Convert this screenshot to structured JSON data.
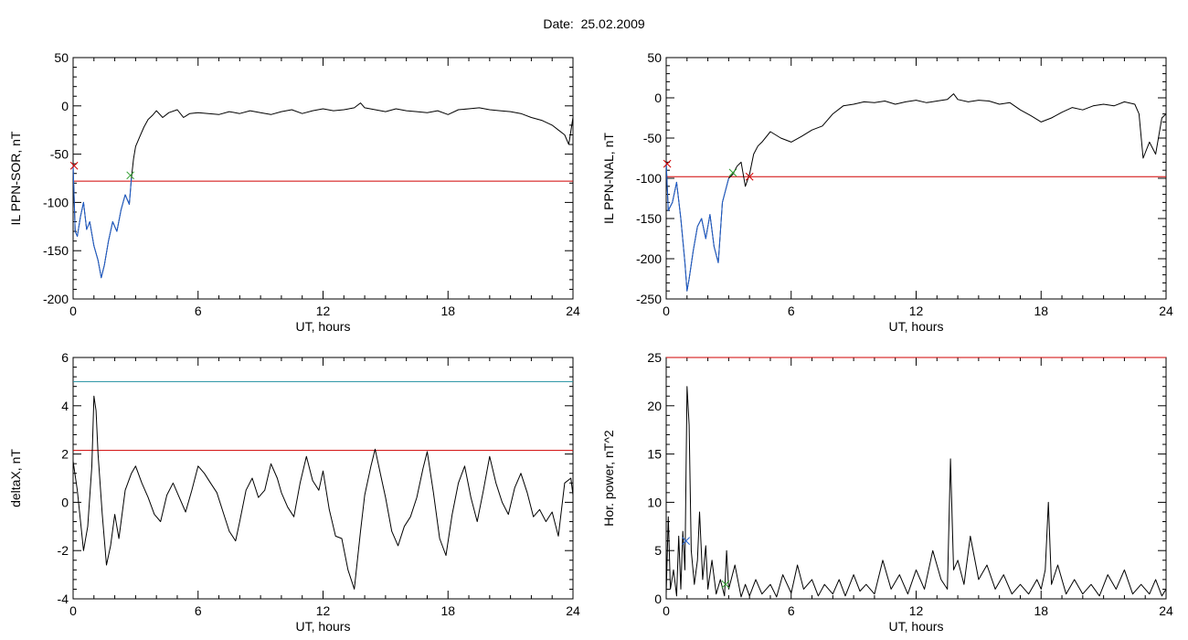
{
  "title": "Date:  25.02.2009",
  "chart_data": [
    {
      "type": "line",
      "title": "",
      "xlabel": "UT, hours",
      "ylabel": "IL PPN-SOR, nT",
      "xlim": [
        0,
        24
      ],
      "ylim": [
        -200,
        50
      ],
      "xticks": [
        0,
        6,
        12,
        18,
        24
      ],
      "yticks": [
        -200,
        -150,
        -100,
        -50,
        0,
        50
      ],
      "threshold": {
        "y": -78,
        "color": "#d00000"
      },
      "series": [
        {
          "color": "#000000",
          "x": [
            0,
            0.1,
            0.2,
            0.35,
            0.5,
            0.65,
            0.8,
            1.0,
            1.2,
            1.35,
            1.5,
            1.7,
            1.9,
            2.1,
            2.3,
            2.5,
            2.7,
            2.8,
            2.9,
            3.0,
            3.2,
            3.4,
            3.6,
            3.8,
            4.0,
            4.3,
            4.6,
            5.0,
            5.3,
            5.6,
            6.0,
            6.5,
            7.0,
            7.5,
            8.0,
            8.5,
            9.0,
            9.5,
            10.0,
            10.5,
            11.0,
            11.5,
            12.0,
            12.5,
            13.0,
            13.5,
            13.8,
            14.0,
            14.5,
            15.0,
            15.5,
            16.0,
            16.5,
            17.0,
            17.5,
            18.0,
            18.5,
            19.0,
            19.5,
            20.0,
            20.5,
            21.0,
            21.5,
            22.0,
            22.5,
            23.0,
            23.3,
            23.6,
            23.8,
            24.0
          ],
          "y": [
            -62,
            -130,
            -135,
            -115,
            -100,
            -128,
            -120,
            -145,
            -160,
            -178,
            -165,
            -140,
            -120,
            -130,
            -108,
            -92,
            -102,
            -75,
            -55,
            -42,
            -32,
            -22,
            -14,
            -10,
            -5,
            -12,
            -7,
            -4,
            -12,
            -8,
            -7,
            -8,
            -9,
            -6,
            -8,
            -5,
            -7,
            -9,
            -6,
            -4,
            -8,
            -5,
            -3,
            -5,
            -4,
            -2,
            3,
            -2,
            -4,
            -6,
            -3,
            -5,
            -6,
            -7,
            -5,
            -9,
            -4,
            -3,
            -2,
            -4,
            -5,
            -6,
            -8,
            -12,
            -15,
            -20,
            -25,
            -30,
            -40,
            -12
          ]
        },
        {
          "color": "#1f5fd0",
          "x": [
            0,
            0.1,
            0.2,
            0.35,
            0.5,
            0.65,
            0.8,
            1.0,
            1.2,
            1.35,
            1.5,
            1.7,
            1.9,
            2.1,
            2.3,
            2.5,
            2.7,
            2.8
          ],
          "y": [
            -62,
            -130,
            -135,
            -115,
            -100,
            -128,
            -120,
            -145,
            -160,
            -178,
            -165,
            -140,
            -120,
            -130,
            -108,
            -92,
            -102,
            -75
          ]
        }
      ],
      "markers": [
        {
          "x": 0.05,
          "y": -62,
          "color": "#d00000"
        },
        {
          "x": 2.75,
          "y": -72,
          "color": "#2e9e2e"
        }
      ]
    },
    {
      "type": "line",
      "title": "",
      "xlabel": "UT, hours",
      "ylabel": "IL PPN-NAL, nT",
      "xlim": [
        0,
        24
      ],
      "ylim": [
        -250,
        50
      ],
      "xticks": [
        0,
        6,
        12,
        18,
        24
      ],
      "yticks": [
        -250,
        -200,
        -150,
        -100,
        -50,
        0,
        50
      ],
      "threshold": {
        "y": -98,
        "color": "#d00000"
      },
      "series": [
        {
          "color": "#000000",
          "x": [
            0,
            0.1,
            0.3,
            0.5,
            0.7,
            0.9,
            1.0,
            1.1,
            1.3,
            1.5,
            1.7,
            1.9,
            2.1,
            2.3,
            2.5,
            2.7,
            2.9,
            3.0,
            3.2,
            3.4,
            3.6,
            3.8,
            4.0,
            4.2,
            4.4,
            4.6,
            5.0,
            5.5,
            6.0,
            6.5,
            7.0,
            7.5,
            8.0,
            8.5,
            9.0,
            9.5,
            10.0,
            10.5,
            11.0,
            11.5,
            12.0,
            12.5,
            13.0,
            13.5,
            13.8,
            14.0,
            14.5,
            15.0,
            15.5,
            16.0,
            16.5,
            17.0,
            17.5,
            18.0,
            18.5,
            19.0,
            19.5,
            20.0,
            20.5,
            21.0,
            21.5,
            22.0,
            22.5,
            22.7,
            22.9,
            23.2,
            23.5,
            23.8,
            24.0
          ],
          "y": [
            -80,
            -140,
            -130,
            -105,
            -150,
            -205,
            -240,
            -225,
            -190,
            -160,
            -150,
            -175,
            -145,
            -185,
            -205,
            -130,
            -110,
            -100,
            -95,
            -85,
            -80,
            -110,
            -95,
            -70,
            -60,
            -55,
            -42,
            -50,
            -55,
            -48,
            -40,
            -35,
            -20,
            -10,
            -8,
            -5,
            -6,
            -4,
            -8,
            -5,
            -3,
            -6,
            -4,
            -2,
            5,
            -2,
            -5,
            -3,
            -4,
            -8,
            -6,
            -15,
            -22,
            -30,
            -25,
            -18,
            -12,
            -15,
            -10,
            -8,
            -10,
            -5,
            -8,
            -20,
            -75,
            -55,
            -70,
            -25,
            -20
          ]
        },
        {
          "color": "#1f5fd0",
          "x": [
            0,
            0.1,
            0.3,
            0.5,
            0.7,
            0.9,
            1.0,
            1.1,
            1.3,
            1.5,
            1.7,
            1.9,
            2.1,
            2.3,
            2.5,
            2.7,
            2.9,
            3.0
          ],
          "y": [
            -80,
            -140,
            -130,
            -105,
            -150,
            -205,
            -240,
            -225,
            -190,
            -160,
            -150,
            -175,
            -145,
            -185,
            -205,
            -130,
            -110,
            -100
          ]
        }
      ],
      "markers": [
        {
          "x": 0.05,
          "y": -82,
          "color": "#d00000"
        },
        {
          "x": 3.2,
          "y": -93,
          "color": "#2e9e2e"
        },
        {
          "x": 4.0,
          "y": -98,
          "color": "#d00000"
        }
      ]
    },
    {
      "type": "line",
      "title": "",
      "xlabel": "UT, hours",
      "ylabel": "deltaX, nT",
      "xlim": [
        0,
        24
      ],
      "ylim": [
        -4,
        6
      ],
      "xticks": [
        0,
        6,
        12,
        18,
        24
      ],
      "yticks": [
        -4,
        -2,
        0,
        2,
        4,
        6
      ],
      "thresholds": [
        {
          "y": 2.15,
          "color": "#d00000"
        },
        {
          "y": 5.0,
          "color": "#1f8f9f"
        }
      ],
      "series": [
        {
          "color": "#000000",
          "x": [
            0,
            0.2,
            0.5,
            0.7,
            0.9,
            1.0,
            1.1,
            1.2,
            1.4,
            1.6,
            1.8,
            2.0,
            2.2,
            2.5,
            2.8,
            3.0,
            3.3,
            3.6,
            3.9,
            4.2,
            4.5,
            4.8,
            5.1,
            5.4,
            5.7,
            6.0,
            6.3,
            6.6,
            6.9,
            7.2,
            7.5,
            7.8,
            8.0,
            8.3,
            8.6,
            8.9,
            9.2,
            9.5,
            9.8,
            10.0,
            10.3,
            10.6,
            10.9,
            11.2,
            11.5,
            11.8,
            12.0,
            12.3,
            12.6,
            12.9,
            13.2,
            13.5,
            13.8,
            14.0,
            14.3,
            14.5,
            14.8,
            15.0,
            15.3,
            15.6,
            15.9,
            16.2,
            16.5,
            16.8,
            17.0,
            17.3,
            17.6,
            17.9,
            18.2,
            18.5,
            18.8,
            19.1,
            19.4,
            19.7,
            20.0,
            20.3,
            20.6,
            20.9,
            21.2,
            21.5,
            21.8,
            22.1,
            22.4,
            22.7,
            23.0,
            23.3,
            23.6,
            23.9,
            24.0
          ],
          "y": [
            1.7,
            0.5,
            -2.0,
            -1.0,
            1.5,
            4.4,
            3.8,
            2.0,
            -0.5,
            -2.6,
            -1.8,
            -0.5,
            -1.5,
            0.5,
            1.2,
            1.5,
            0.8,
            0.2,
            -0.5,
            -0.8,
            0.3,
            0.8,
            0.2,
            -0.4,
            0.5,
            1.5,
            1.2,
            0.8,
            0.4,
            -0.4,
            -1.2,
            -1.6,
            -0.8,
            0.5,
            1.0,
            0.2,
            0.5,
            1.6,
            1.0,
            0.4,
            -0.2,
            -0.6,
            0.8,
            1.9,
            0.9,
            0.5,
            1.3,
            -0.3,
            -1.4,
            -1.5,
            -2.8,
            -3.6,
            -1.2,
            0.3,
            1.5,
            2.2,
            1.0,
            0.2,
            -1.2,
            -1.8,
            -1.0,
            -0.6,
            0.2,
            1.4,
            2.1,
            0.4,
            -1.5,
            -2.2,
            -0.5,
            0.8,
            1.5,
            0.2,
            -0.8,
            0.5,
            1.9,
            0.8,
            0.0,
            -0.5,
            0.6,
            1.2,
            0.4,
            -0.6,
            -0.3,
            -0.8,
            -0.4,
            -1.4,
            0.8,
            1.0,
            0.3
          ]
        }
      ]
    },
    {
      "type": "line",
      "title": "",
      "xlabel": "UT, hours",
      "ylabel": "Hor. power, nT^2",
      "xlim": [
        0,
        24
      ],
      "ylim": [
        0,
        25
      ],
      "xticks": [
        0,
        6,
        12,
        18,
        24
      ],
      "yticks": [
        0,
        5,
        10,
        15,
        20,
        25
      ],
      "threshold": {
        "y": 25,
        "color": "#d00000"
      },
      "series": [
        {
          "color": "#000000",
          "x": [
            0,
            0.1,
            0.2,
            0.35,
            0.5,
            0.6,
            0.7,
            0.8,
            0.9,
            1.0,
            1.1,
            1.2,
            1.35,
            1.5,
            1.6,
            1.75,
            1.9,
            2.0,
            2.2,
            2.4,
            2.6,
            2.8,
            2.9,
            3.0,
            3.3,
            3.6,
            3.8,
            4.0,
            4.3,
            4.6,
            5.0,
            5.3,
            5.6,
            6.0,
            6.3,
            6.6,
            7.0,
            7.3,
            7.6,
            8.0,
            8.3,
            8.6,
            9.0,
            9.3,
            9.6,
            10.0,
            10.4,
            10.8,
            11.2,
            11.6,
            12.0,
            12.4,
            12.8,
            13.2,
            13.5,
            13.65,
            13.8,
            14.0,
            14.3,
            14.6,
            15.0,
            15.4,
            15.8,
            16.2,
            16.6,
            17.0,
            17.4,
            17.8,
            18.0,
            18.2,
            18.35,
            18.5,
            18.8,
            19.2,
            19.6,
            20.0,
            20.4,
            20.8,
            21.2,
            21.6,
            22.0,
            22.4,
            22.8,
            23.2,
            23.5,
            23.8,
            24.0
          ],
          "y": [
            0.5,
            8.5,
            1.0,
            3.0,
            0.3,
            6.5,
            1.0,
            7.0,
            3.0,
            22.0,
            18.0,
            5.0,
            1.5,
            4.0,
            9.0,
            2.0,
            5.5,
            1.0,
            4.0,
            0.5,
            2.0,
            0.3,
            5.0,
            1.0,
            3.5,
            0.2,
            1.5,
            0.3,
            2.0,
            0.5,
            1.5,
            0.2,
            2.5,
            0.6,
            3.5,
            1.0,
            2.0,
            0.3,
            1.5,
            0.5,
            2.0,
            0.3,
            2.5,
            0.8,
            1.5,
            0.5,
            4.0,
            1.0,
            2.5,
            0.5,
            3.0,
            1.0,
            5.0,
            2.0,
            1.0,
            14.5,
            3.0,
            4.0,
            1.5,
            6.5,
            2.0,
            3.5,
            1.0,
            2.5,
            0.5,
            1.5,
            0.5,
            2.0,
            1.0,
            3.0,
            10.0,
            1.5,
            3.5,
            0.5,
            2.0,
            0.5,
            1.5,
            0.3,
            2.5,
            1.0,
            3.0,
            0.5,
            1.5,
            0.5,
            2.0,
            0.3,
            1.0
          ]
        }
      ],
      "markers": [
        {
          "x": 0.95,
          "y": 6.0,
          "color": "#1f5fd0"
        },
        {
          "x": 2.85,
          "y": 1.5,
          "color": "#2e9e2e"
        }
      ]
    }
  ]
}
